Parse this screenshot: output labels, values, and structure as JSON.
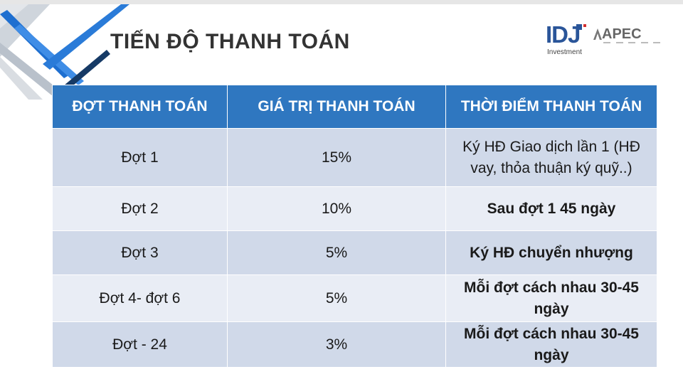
{
  "header": {
    "title": "TIẾN ĐỘ THANH TOÁN",
    "logo_idj": "IDJ",
    "logo_idj_sub": "Investment",
    "logo_apec": "APEC"
  },
  "table": {
    "columns": [
      "ĐỢT THANH TOÁN",
      "GIÁ TRỊ THANH TOÁN",
      "THỜI ĐIỂM THANH TOÁN"
    ],
    "rows": [
      {
        "phase": "Đợt 1",
        "value": "15%",
        "timing": "Ký HĐ Giao dịch lần 1 (HĐ vay, thỏa thuận ký quỹ..)",
        "timing_bold": false
      },
      {
        "phase": "Đợt 2",
        "value": "10%",
        "timing": "Sau đợt 1 45 ngày",
        "timing_bold": true
      },
      {
        "phase": "Đợt 3",
        "value": "5%",
        "timing": "Ký HĐ chuyển nhượng",
        "timing_bold": true
      },
      {
        "phase": "Đợt 4- đợt 6",
        "value": "5%",
        "timing": "Mỗi đợt cách nhau 30-45 ngày",
        "timing_bold": true
      },
      {
        "phase": "Đợt - 24",
        "value": "3%",
        "timing": "Mỗi đợt cách nhau 30-45 ngày",
        "timing_bold": true
      }
    ]
  },
  "colors": {
    "header_blue": "#2f77c0",
    "row_dark": "#d0d9e9",
    "row_light": "#e9edf5",
    "title": "#333333"
  }
}
